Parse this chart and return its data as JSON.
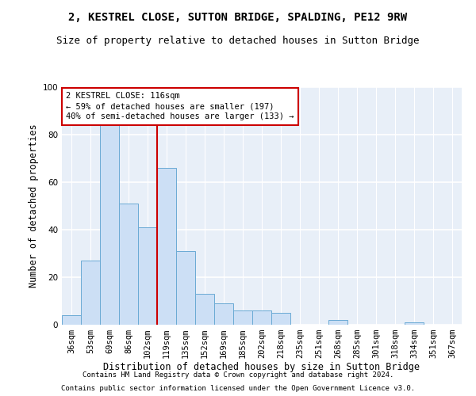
{
  "title1": "2, KESTREL CLOSE, SUTTON BRIDGE, SPALDING, PE12 9RW",
  "title2": "Size of property relative to detached houses in Sutton Bridge",
  "xlabel": "Distribution of detached houses by size in Sutton Bridge",
  "ylabel": "Number of detached properties",
  "footnote1": "Contains HM Land Registry data © Crown copyright and database right 2024.",
  "footnote2": "Contains public sector information licensed under the Open Government Licence v3.0.",
  "categories": [
    "36sqm",
    "53sqm",
    "69sqm",
    "86sqm",
    "102sqm",
    "119sqm",
    "135sqm",
    "152sqm",
    "169sqm",
    "185sqm",
    "202sqm",
    "218sqm",
    "235sqm",
    "251sqm",
    "268sqm",
    "285sqm",
    "301sqm",
    "318sqm",
    "334sqm",
    "351sqm",
    "367sqm"
  ],
  "values": [
    4,
    27,
    84,
    51,
    41,
    66,
    31,
    13,
    9,
    6,
    6,
    5,
    0,
    0,
    2,
    0,
    0,
    0,
    1,
    0,
    0
  ],
  "bar_color": "#ccdff5",
  "bar_edge_color": "#6aaad4",
  "vline_color": "#cc0000",
  "vline_index": 5,
  "annotation_text": "2 KESTREL CLOSE: 116sqm\n← 59% of detached houses are smaller (197)\n40% of semi-detached houses are larger (133) →",
  "annotation_box_color": "white",
  "annotation_box_edge": "#cc0000",
  "ylim": [
    0,
    100
  ],
  "yticks": [
    0,
    20,
    40,
    60,
    80,
    100
  ],
  "bg_color": "#e8eff8",
  "grid_color": "white",
  "title1_fontsize": 10,
  "title2_fontsize": 9,
  "xlabel_fontsize": 8.5,
  "ylabel_fontsize": 8.5,
  "tick_fontsize": 7.5,
  "annotation_fontsize": 7.5,
  "footnote_fontsize": 6.5
}
